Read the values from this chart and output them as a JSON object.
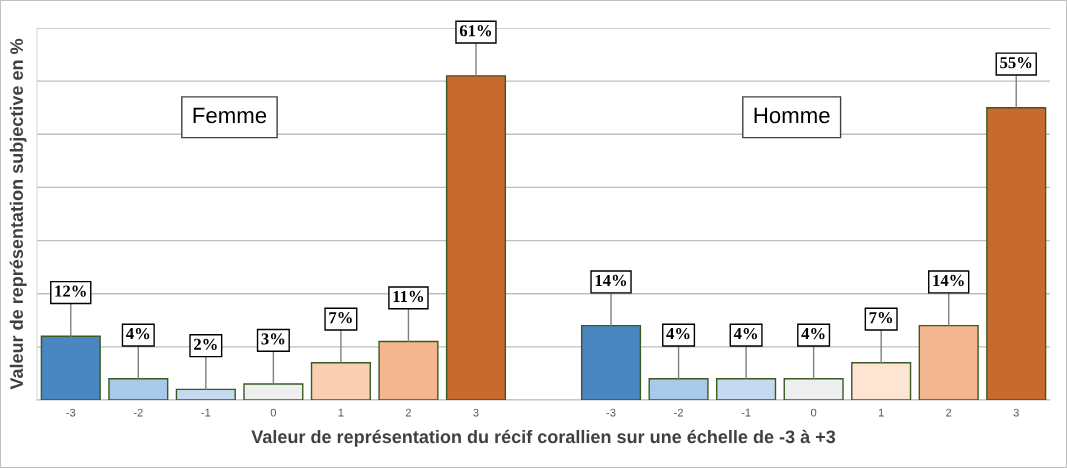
{
  "chart_data": {
    "type": "bar",
    "ylabel": "Valeur de représentation subjective en %",
    "xlabel": "Valeur de représentation du récif corallien sur une échelle de -3 à +3",
    "categories": [
      "-3",
      "-2",
      "-1",
      "0",
      "1",
      "2",
      "3",
      null,
      "-3",
      "-2",
      "-1",
      "0",
      "1",
      "2",
      "3"
    ],
    "values": [
      12,
      4,
      2,
      3,
      7,
      11,
      61,
      null,
      14,
      4,
      4,
      4,
      7,
      14,
      55
    ],
    "value_labels": [
      "12%",
      "4%",
      "2%",
      "3%",
      "7%",
      "11%",
      "61%",
      null,
      "14%",
      "4%",
      "4%",
      "4%",
      "7%",
      "14%",
      "55%"
    ],
    "colors": [
      "#4a86c0",
      "#a9c9e8",
      "#c5daf0",
      "#efefef",
      "#f8cfb3",
      "#f4b68e",
      "#c8692f",
      null,
      "#4a86c0",
      "#a9c9e8",
      "#c5daf0",
      "#efefef",
      "#fde4d3",
      "#f4b68e",
      "#c8692f"
    ],
    "ylim": [
      0,
      70
    ],
    "yticks": [
      {
        "value": 0,
        "label": null
      },
      {
        "value": 10,
        "label": null
      },
      {
        "value": 20,
        "label": null
      },
      {
        "value": 30,
        "label": null
      },
      {
        "value": 40,
        "label": null
      },
      {
        "value": 50,
        "label": null
      },
      {
        "value": 60,
        "label": null
      },
      {
        "value": 70,
        "label": null
      }
    ],
    "grid": "y",
    "annotations": [
      "Femme",
      "Homme"
    ]
  }
}
